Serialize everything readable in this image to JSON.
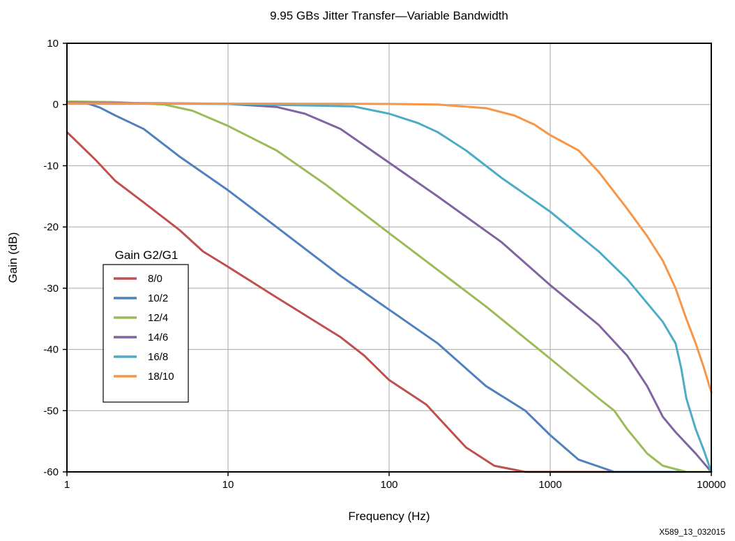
{
  "chart_data": {
    "type": "line",
    "title": "9.95 GBs Jitter Transfer—Variable Bandwidth",
    "xlabel": "Frequency (Hz)",
    "ylabel": "Gain (dB)",
    "x_scale": "log",
    "xlim": [
      1,
      10000
    ],
    "ylim": [
      -60,
      10
    ],
    "x_ticks": [
      1,
      10,
      100,
      1000,
      10000
    ],
    "x_tick_labels": [
      "1",
      "10",
      "100",
      "1000",
      "10000"
    ],
    "y_ticks": [
      10,
      0,
      -10,
      -20,
      -30,
      -40,
      -50,
      -60
    ],
    "y_tick_labels": [
      "10",
      "0",
      "-10",
      "-20",
      "-30",
      "-40",
      "-50",
      "-60"
    ],
    "grid": true,
    "legend": {
      "title": "Gain G2/G1",
      "placement": "left"
    },
    "footnote": "X589_13_032015",
    "series": [
      {
        "name": "8/0",
        "color": "#c0504d",
        "points": [
          [
            1,
            -4.5
          ],
          [
            1.5,
            -9
          ],
          [
            2,
            -12.5
          ],
          [
            3,
            -16
          ],
          [
            5,
            -20.5
          ],
          [
            7,
            -24
          ],
          [
            10,
            -26.5
          ],
          [
            20,
            -31.5
          ],
          [
            50,
            -38
          ],
          [
            70,
            -41
          ],
          [
            100,
            -45
          ],
          [
            170,
            -49
          ],
          [
            300,
            -56
          ],
          [
            450,
            -59
          ],
          [
            700,
            -60
          ],
          [
            10000,
            -60
          ]
        ]
      },
      {
        "name": "10/2",
        "color": "#4f81bd",
        "points": [
          [
            1,
            0.5
          ],
          [
            1.3,
            0.3
          ],
          [
            1.6,
            -0.5
          ],
          [
            2,
            -1.8
          ],
          [
            3,
            -4
          ],
          [
            5,
            -8.5
          ],
          [
            10,
            -14
          ],
          [
            20,
            -20
          ],
          [
            50,
            -28
          ],
          [
            100,
            -33.5
          ],
          [
            200,
            -39
          ],
          [
            400,
            -46
          ],
          [
            700,
            -50
          ],
          [
            1000,
            -54
          ],
          [
            1500,
            -58
          ],
          [
            2500,
            -60
          ],
          [
            10000,
            -60
          ]
        ]
      },
      {
        "name": "12/4",
        "color": "#9bbb59",
        "points": [
          [
            1,
            0.5
          ],
          [
            2,
            0.4
          ],
          [
            4,
            0
          ],
          [
            6,
            -1
          ],
          [
            10,
            -3.5
          ],
          [
            20,
            -7.5
          ],
          [
            40,
            -13
          ],
          [
            100,
            -21
          ],
          [
            200,
            -27
          ],
          [
            400,
            -33
          ],
          [
            1000,
            -41.5
          ],
          [
            2000,
            -48
          ],
          [
            2500,
            -50
          ],
          [
            3000,
            -53
          ],
          [
            4000,
            -57
          ],
          [
            5000,
            -59
          ],
          [
            7000,
            -60
          ],
          [
            10000,
            -60
          ]
        ]
      },
      {
        "name": "14/6",
        "color": "#8064a2",
        "points": [
          [
            1,
            0.3
          ],
          [
            5,
            0.2
          ],
          [
            10,
            0.1
          ],
          [
            20,
            -0.4
          ],
          [
            30,
            -1.5
          ],
          [
            50,
            -4
          ],
          [
            100,
            -9.5
          ],
          [
            200,
            -15
          ],
          [
            500,
            -22.5
          ],
          [
            1000,
            -29.5
          ],
          [
            2000,
            -36
          ],
          [
            3000,
            -41
          ],
          [
            4000,
            -46
          ],
          [
            5000,
            -51
          ],
          [
            6000,
            -53.5
          ],
          [
            8000,
            -57
          ],
          [
            10000,
            -60
          ]
        ]
      },
      {
        "name": "16/8",
        "color": "#4bacc6",
        "points": [
          [
            1,
            0.2
          ],
          [
            10,
            0.1
          ],
          [
            60,
            -0.3
          ],
          [
            100,
            -1.5
          ],
          [
            150,
            -3
          ],
          [
            200,
            -4.5
          ],
          [
            300,
            -7.5
          ],
          [
            500,
            -12
          ],
          [
            1000,
            -17.5
          ],
          [
            2000,
            -24
          ],
          [
            3000,
            -28.5
          ],
          [
            5000,
            -35.5
          ],
          [
            6000,
            -39
          ],
          [
            6500,
            -43
          ],
          [
            7000,
            -48
          ],
          [
            8000,
            -53
          ],
          [
            9000,
            -56.5
          ],
          [
            10000,
            -60
          ]
        ]
      },
      {
        "name": "18/10",
        "color": "#f79646",
        "points": [
          [
            1,
            0.2
          ],
          [
            100,
            0.1
          ],
          [
            200,
            0
          ],
          [
            400,
            -0.6
          ],
          [
            600,
            -1.8
          ],
          [
            800,
            -3.3
          ],
          [
            1000,
            -5
          ],
          [
            1500,
            -7.5
          ],
          [
            2000,
            -11
          ],
          [
            3000,
            -17
          ],
          [
            4000,
            -21.5
          ],
          [
            5000,
            -25.5
          ],
          [
            6000,
            -30
          ],
          [
            7000,
            -35
          ],
          [
            8000,
            -39
          ],
          [
            9000,
            -43
          ],
          [
            10000,
            -47
          ]
        ]
      }
    ]
  }
}
